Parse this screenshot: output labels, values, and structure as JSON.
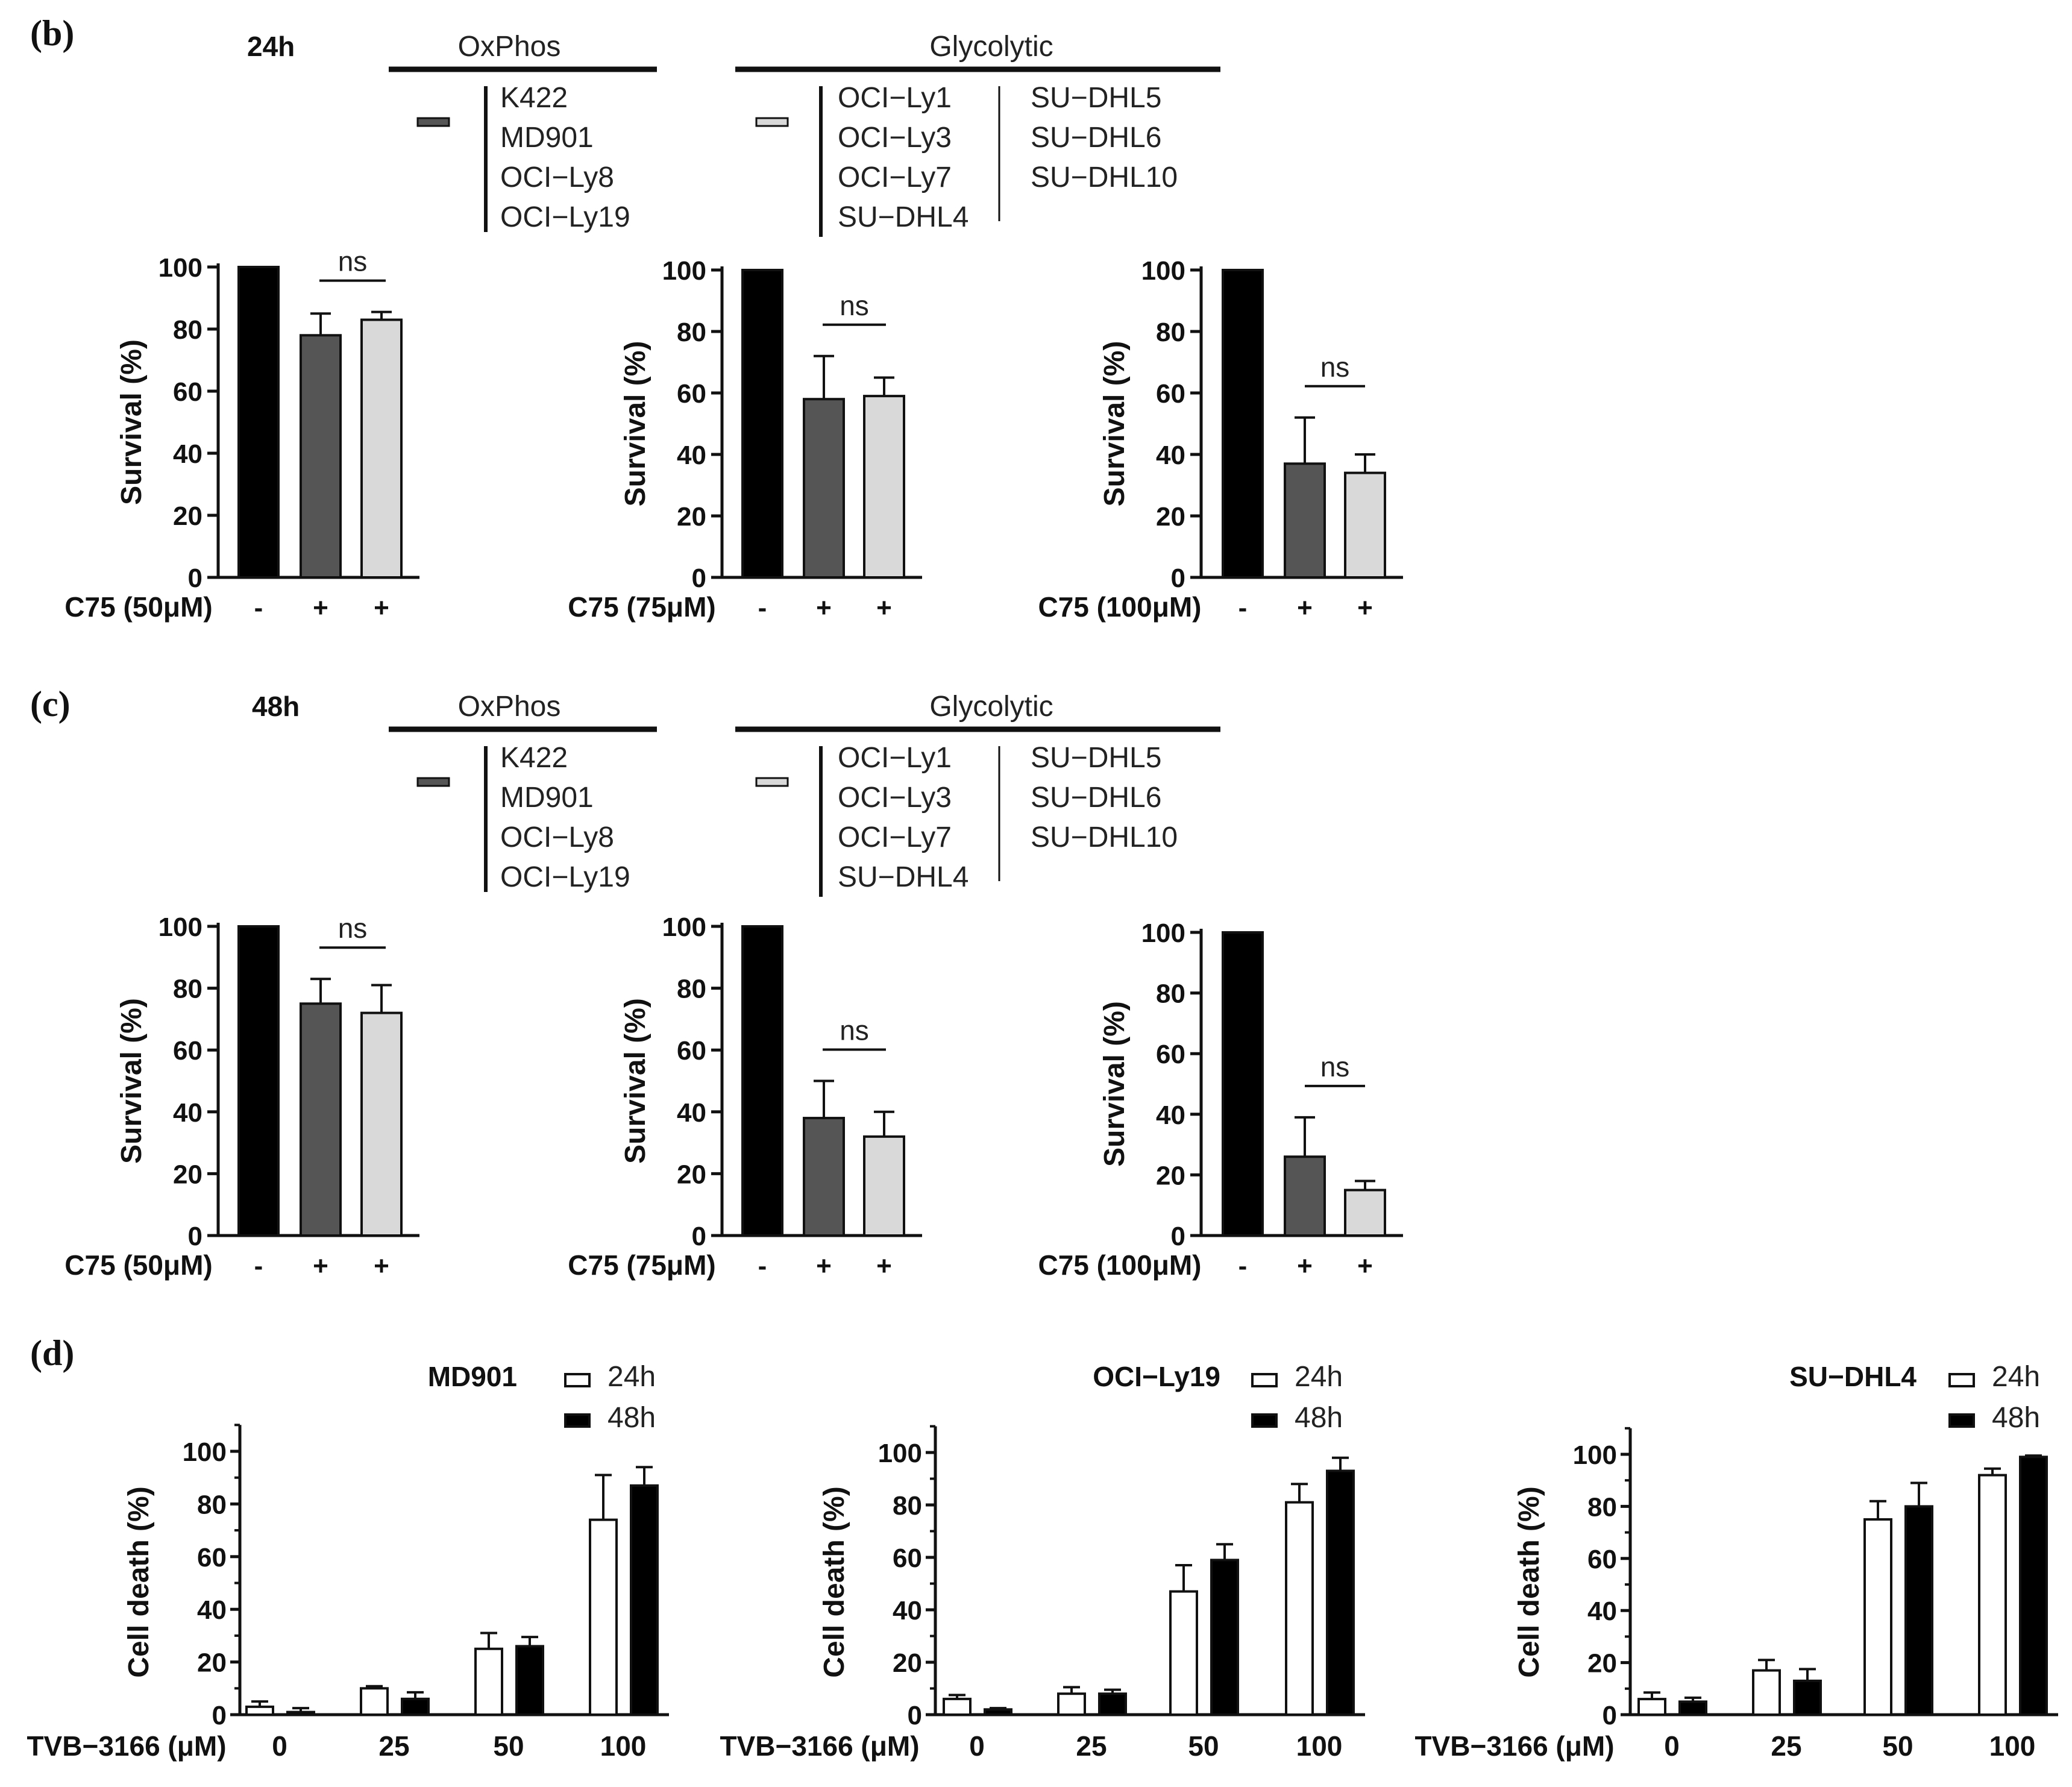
{
  "figure": {
    "panels": [
      {
        "letter": "(b)",
        "time": "24h"
      },
      {
        "letter": "(c)",
        "time": "48h"
      },
      {
        "letter": "(d)"
      }
    ],
    "legend": {
      "oxphos_title": "OxPhos",
      "glycolytic_title": "Glycolytic",
      "oxphos_lines": [
        "K422",
        "MD901",
        "OCI−Ly8",
        "OCI−Ly19"
      ],
      "glyco_col1": [
        "OCI−Ly1",
        "OCI−Ly3",
        "OCI−Ly7",
        "SU−DHL4"
      ],
      "glyco_col2": [
        "SU−DHL5",
        "SU−DHL6",
        "SU−DHL10"
      ]
    },
    "d_legend": [
      "24h",
      "48h"
    ]
  },
  "colors": {
    "control": "#000000",
    "oxphos": "#555555",
    "glycolytic": "#d9d9d9",
    "h24": "#ffffff",
    "h48": "#000000"
  },
  "chart_data": [
    {
      "id": "b1",
      "type": "bar",
      "ylabel": "Survival (%)",
      "ylim": [
        0,
        100
      ],
      "yticks": [
        "0",
        "20",
        "40",
        "60",
        "80",
        "100"
      ],
      "treatment_label": "C75 (50μM)",
      "x_labels": [
        "-",
        "+",
        "+"
      ],
      "values": [
        100,
        78,
        83
      ],
      "errors": [
        0,
        7,
        2.5
      ],
      "significance": "ns"
    },
    {
      "id": "b2",
      "type": "bar",
      "ylabel": "Survival (%)",
      "ylim": [
        0,
        100
      ],
      "yticks": [
        "0",
        "20",
        "40",
        "60",
        "80",
        "100"
      ],
      "treatment_label": "C75 (75μM)",
      "x_labels": [
        "-",
        "+",
        "+"
      ],
      "values": [
        100,
        58,
        59
      ],
      "errors": [
        0,
        14,
        6
      ],
      "significance": "ns"
    },
    {
      "id": "b3",
      "type": "bar",
      "ylabel": "Survival (%)",
      "ylim": [
        0,
        100
      ],
      "yticks": [
        "0",
        "20",
        "40",
        "60",
        "80",
        "100"
      ],
      "treatment_label": "C75 (100μM)",
      "x_labels": [
        "-",
        "+",
        "+"
      ],
      "values": [
        100,
        37,
        34
      ],
      "errors": [
        0,
        15,
        6
      ],
      "significance": "ns"
    },
    {
      "id": "c1",
      "type": "bar",
      "ylabel": "Survival (%)",
      "ylim": [
        0,
        100
      ],
      "yticks": [
        "0",
        "20",
        "40",
        "60",
        "80",
        "100"
      ],
      "treatment_label": "C75 (50μM)",
      "x_labels": [
        "-",
        "+",
        "+"
      ],
      "values": [
        100,
        75,
        72
      ],
      "errors": [
        0,
        8,
        9
      ],
      "significance": "ns"
    },
    {
      "id": "c2",
      "type": "bar",
      "ylabel": "Survival (%)",
      "ylim": [
        0,
        100
      ],
      "yticks": [
        "0",
        "20",
        "40",
        "60",
        "80",
        "100"
      ],
      "treatment_label": "C75 (75μM)",
      "x_labels": [
        "-",
        "+",
        "+"
      ],
      "values": [
        100,
        38,
        32
      ],
      "errors": [
        0,
        12,
        8
      ],
      "significance": "ns"
    },
    {
      "id": "c3",
      "type": "bar",
      "ylabel": "Survival (%)",
      "ylim": [
        0,
        100
      ],
      "yticks": [
        "0",
        "20",
        "40",
        "60",
        "80",
        "100"
      ],
      "treatment_label": "C75 (100μM)",
      "x_labels": [
        "-",
        "+",
        "+"
      ],
      "values": [
        100,
        26,
        15
      ],
      "errors": [
        0,
        13,
        3
      ],
      "significance": "ns"
    },
    {
      "id": "d1",
      "type": "bar",
      "title": "MD901",
      "ylabel": "Cell death (%)",
      "xlabel": "TVB−3166 (μM)",
      "ylim": [
        0,
        110
      ],
      "yticks": [
        "0",
        "20",
        "40",
        "60",
        "80",
        "100"
      ],
      "categories": [
        "0",
        "25",
        "50",
        "100"
      ],
      "series": [
        {
          "name": "24h",
          "values": [
            3,
            10,
            25,
            74
          ],
          "errors": [
            2,
            0.8,
            6,
            17
          ]
        },
        {
          "name": "48h",
          "values": [
            1,
            6,
            26,
            87
          ],
          "errors": [
            1.5,
            2.5,
            3.5,
            7
          ]
        }
      ]
    },
    {
      "id": "d2",
      "type": "bar",
      "title": "OCI−Ly19",
      "ylabel": "Cell death (%)",
      "xlabel": "TVB−3166 (μM)",
      "ylim": [
        0,
        110
      ],
      "yticks": [
        "0",
        "20",
        "40",
        "60",
        "80",
        "100"
      ],
      "categories": [
        "0",
        "25",
        "50",
        "100"
      ],
      "series": [
        {
          "name": "24h",
          "values": [
            6,
            8,
            47,
            81
          ],
          "errors": [
            1.5,
            2.5,
            10,
            7
          ]
        },
        {
          "name": "48h",
          "values": [
            2,
            8,
            59,
            93
          ],
          "errors": [
            0.5,
            1.5,
            6,
            5
          ]
        }
      ]
    },
    {
      "id": "d3",
      "type": "bar",
      "title": "SU−DHL4",
      "ylabel": "Cell death (%)",
      "xlabel": "TVB−3166 (μM)",
      "ylim": [
        0,
        110
      ],
      "yticks": [
        "0",
        "20",
        "40",
        "60",
        "80",
        "100"
      ],
      "categories": [
        "0",
        "25",
        "50",
        "100"
      ],
      "series": [
        {
          "name": "24h",
          "values": [
            6,
            17,
            75,
            92
          ],
          "errors": [
            2.5,
            4,
            7,
            2.5
          ]
        },
        {
          "name": "48h",
          "values": [
            5,
            13,
            80,
            99
          ],
          "errors": [
            1.5,
            4.5,
            9,
            0.5
          ]
        }
      ]
    }
  ]
}
